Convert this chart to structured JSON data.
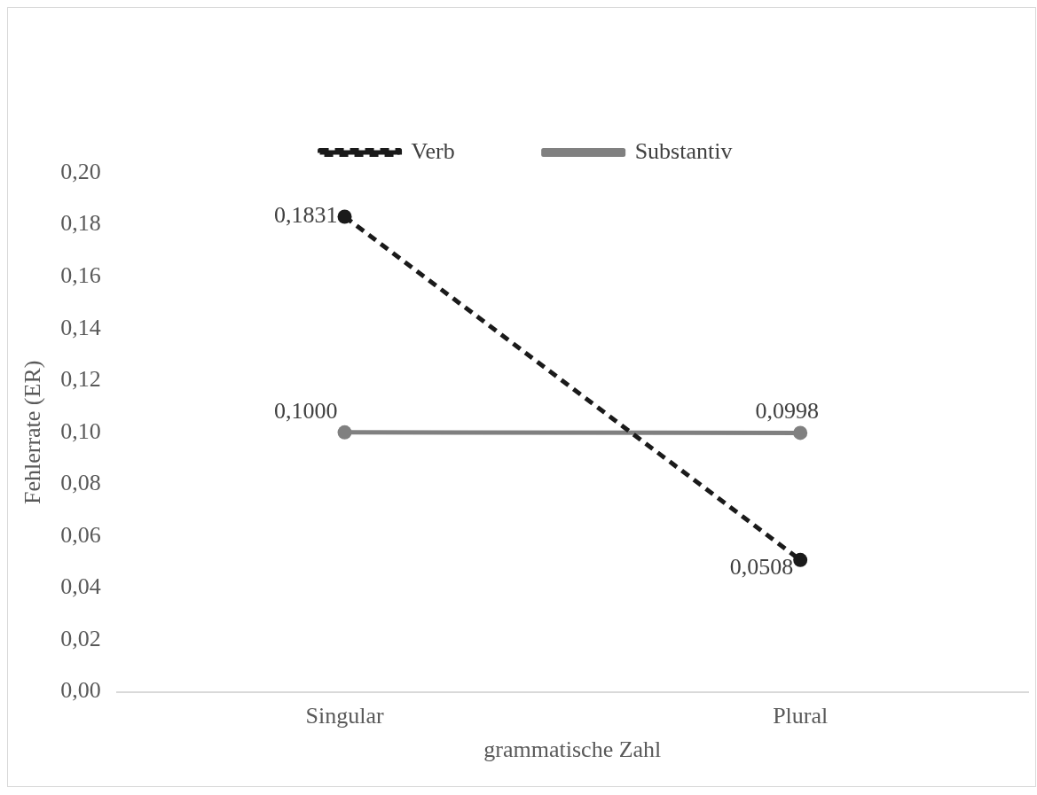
{
  "chart_data": {
    "type": "line",
    "xlabel": "grammatische Zahl",
    "ylabel": "Fehlerrate (ER)",
    "categories": [
      "Singular",
      "Plural"
    ],
    "series": [
      {
        "name": "Verb",
        "color": "#1a1a1a",
        "values": [
          0.1831,
          0.0508
        ],
        "line_style": "dashed",
        "value_labels": [
          "0,1831",
          "0,0508"
        ]
      },
      {
        "name": "Substantiv",
        "color": "#808080",
        "values": [
          0.1,
          0.0998
        ],
        "line_style": "solid",
        "value_labels": [
          "0,1000",
          "0,0998"
        ]
      }
    ],
    "ylim": [
      0,
      0.2
    ],
    "yticks": [
      {
        "value": 0,
        "label": "0,00"
      },
      {
        "value": 0.02,
        "label": "0,02"
      },
      {
        "value": 0.04,
        "label": "0,04"
      },
      {
        "value": 0.06,
        "label": "0,06"
      },
      {
        "value": 0.08,
        "label": "0,08"
      },
      {
        "value": 0.1,
        "label": "0,10"
      },
      {
        "value": 0.12,
        "label": "0,12"
      },
      {
        "value": 0.14,
        "label": "0,14"
      },
      {
        "value": 0.16,
        "label": "0,16"
      },
      {
        "value": 0.18,
        "label": "0,18"
      },
      {
        "value": 0.2,
        "label": "0,20"
      }
    ],
    "grid": false,
    "legend": "top",
    "marker": "circle"
  }
}
